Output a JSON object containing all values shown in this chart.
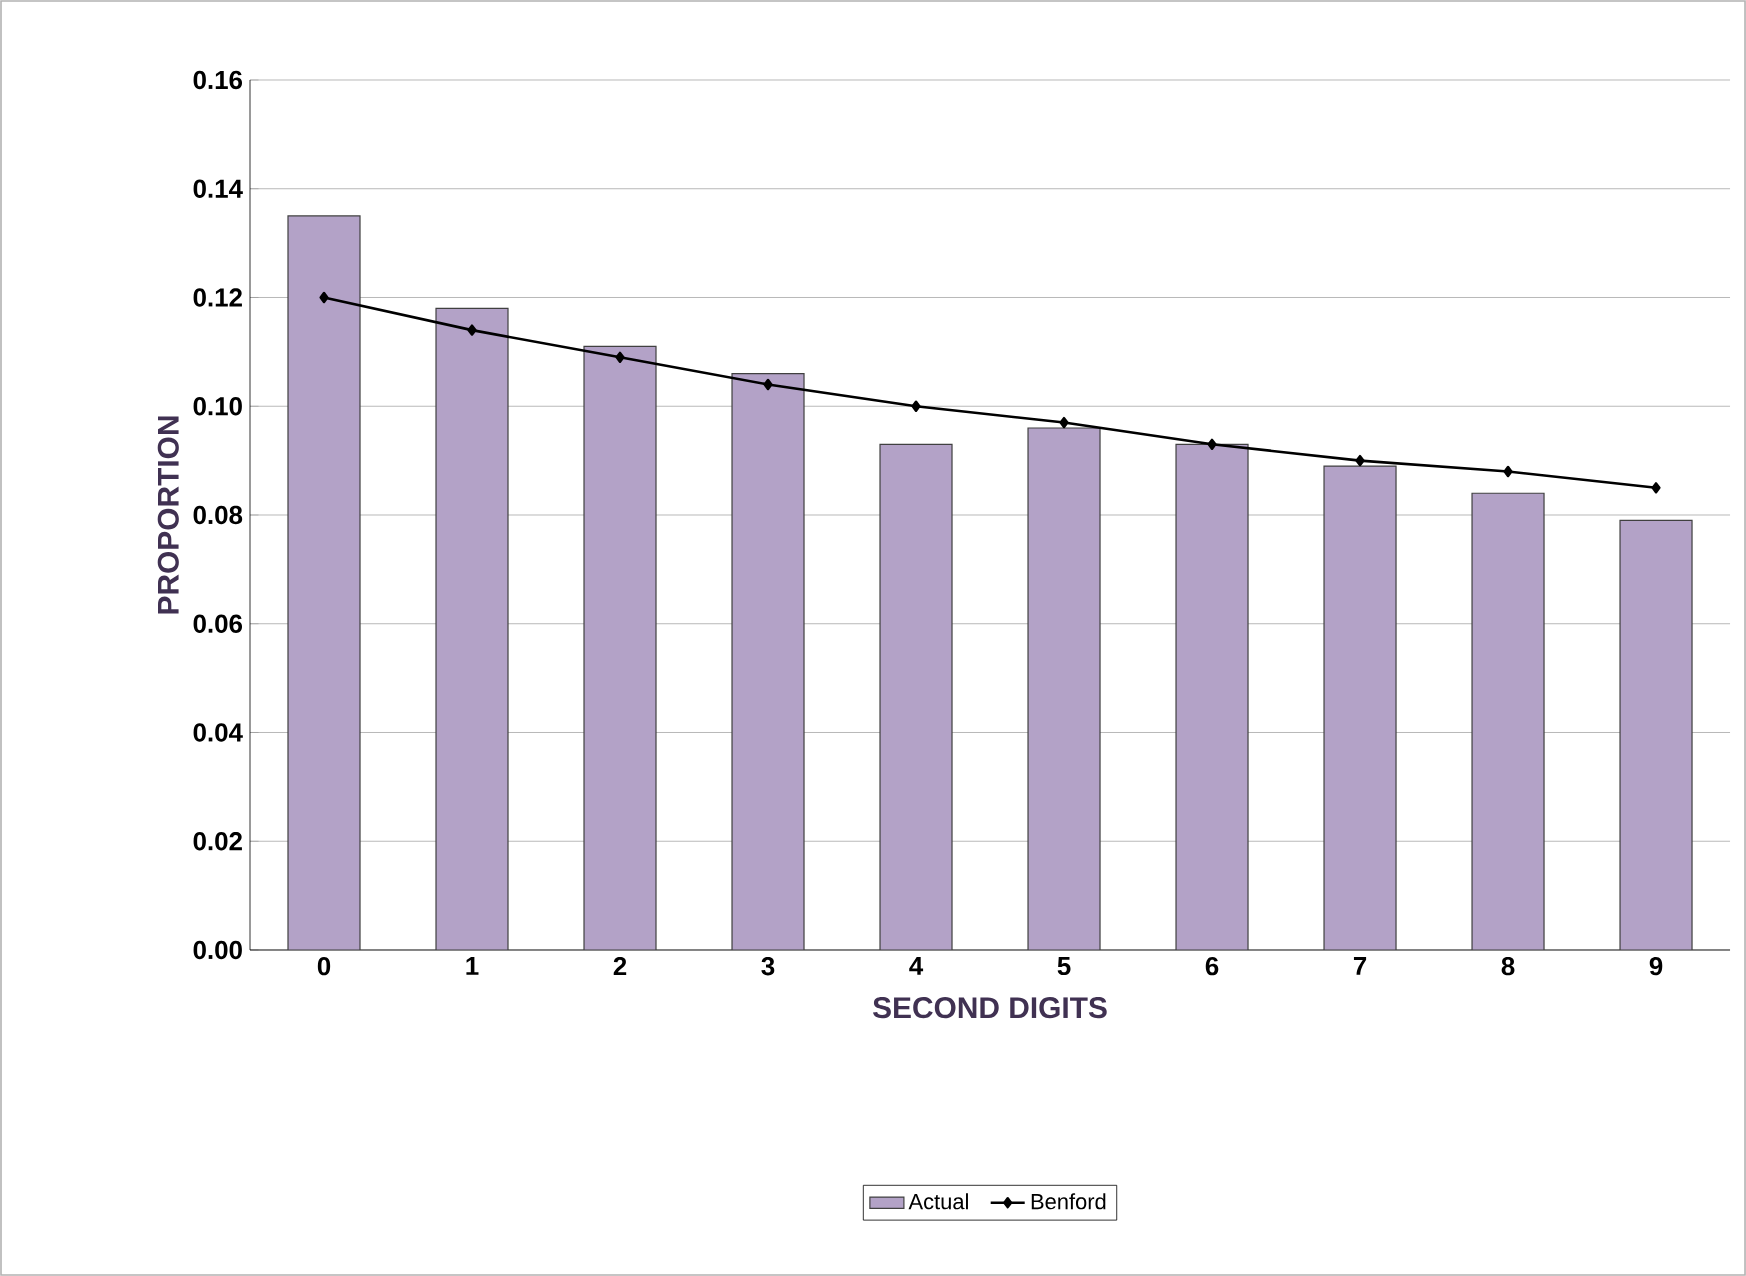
{
  "chart_data": {
    "type": "bar",
    "xlabel": "SECOND DIGITS",
    "ylabel": "PROPORTION",
    "categories": [
      "0",
      "1",
      "2",
      "3",
      "4",
      "5",
      "6",
      "7",
      "8",
      "9"
    ],
    "series": [
      {
        "name": "Actual",
        "color": "#b3a2c7",
        "values": [
          0.135,
          0.118,
          0.111,
          0.106,
          0.093,
          0.096,
          0.093,
          0.089,
          0.084,
          0.079
        ]
      },
      {
        "name": "Benford",
        "type": "line",
        "color": "#000000",
        "marker": "diamond",
        "values": [
          0.12,
          0.114,
          0.109,
          0.104,
          0.1,
          0.097,
          0.093,
          0.09,
          0.088,
          0.085
        ]
      }
    ],
    "ylim": [
      0,
      0.16
    ],
    "yticks": [
      {
        "value": 0,
        "label": "0.00"
      },
      {
        "value": 0.02,
        "label": "0.02"
      },
      {
        "value": 0.04,
        "label": "0.04"
      },
      {
        "value": 0.06,
        "label": "0.06"
      },
      {
        "value": 0.08,
        "label": "0.08"
      },
      {
        "value": 0.1,
        "label": "0.10"
      },
      {
        "value": 0.12,
        "label": "0.12"
      },
      {
        "value": 0.14,
        "label": "0.14"
      },
      {
        "value": 0.16,
        "label": "0.16"
      }
    ],
    "grid": "y",
    "legend": "bottom"
  }
}
